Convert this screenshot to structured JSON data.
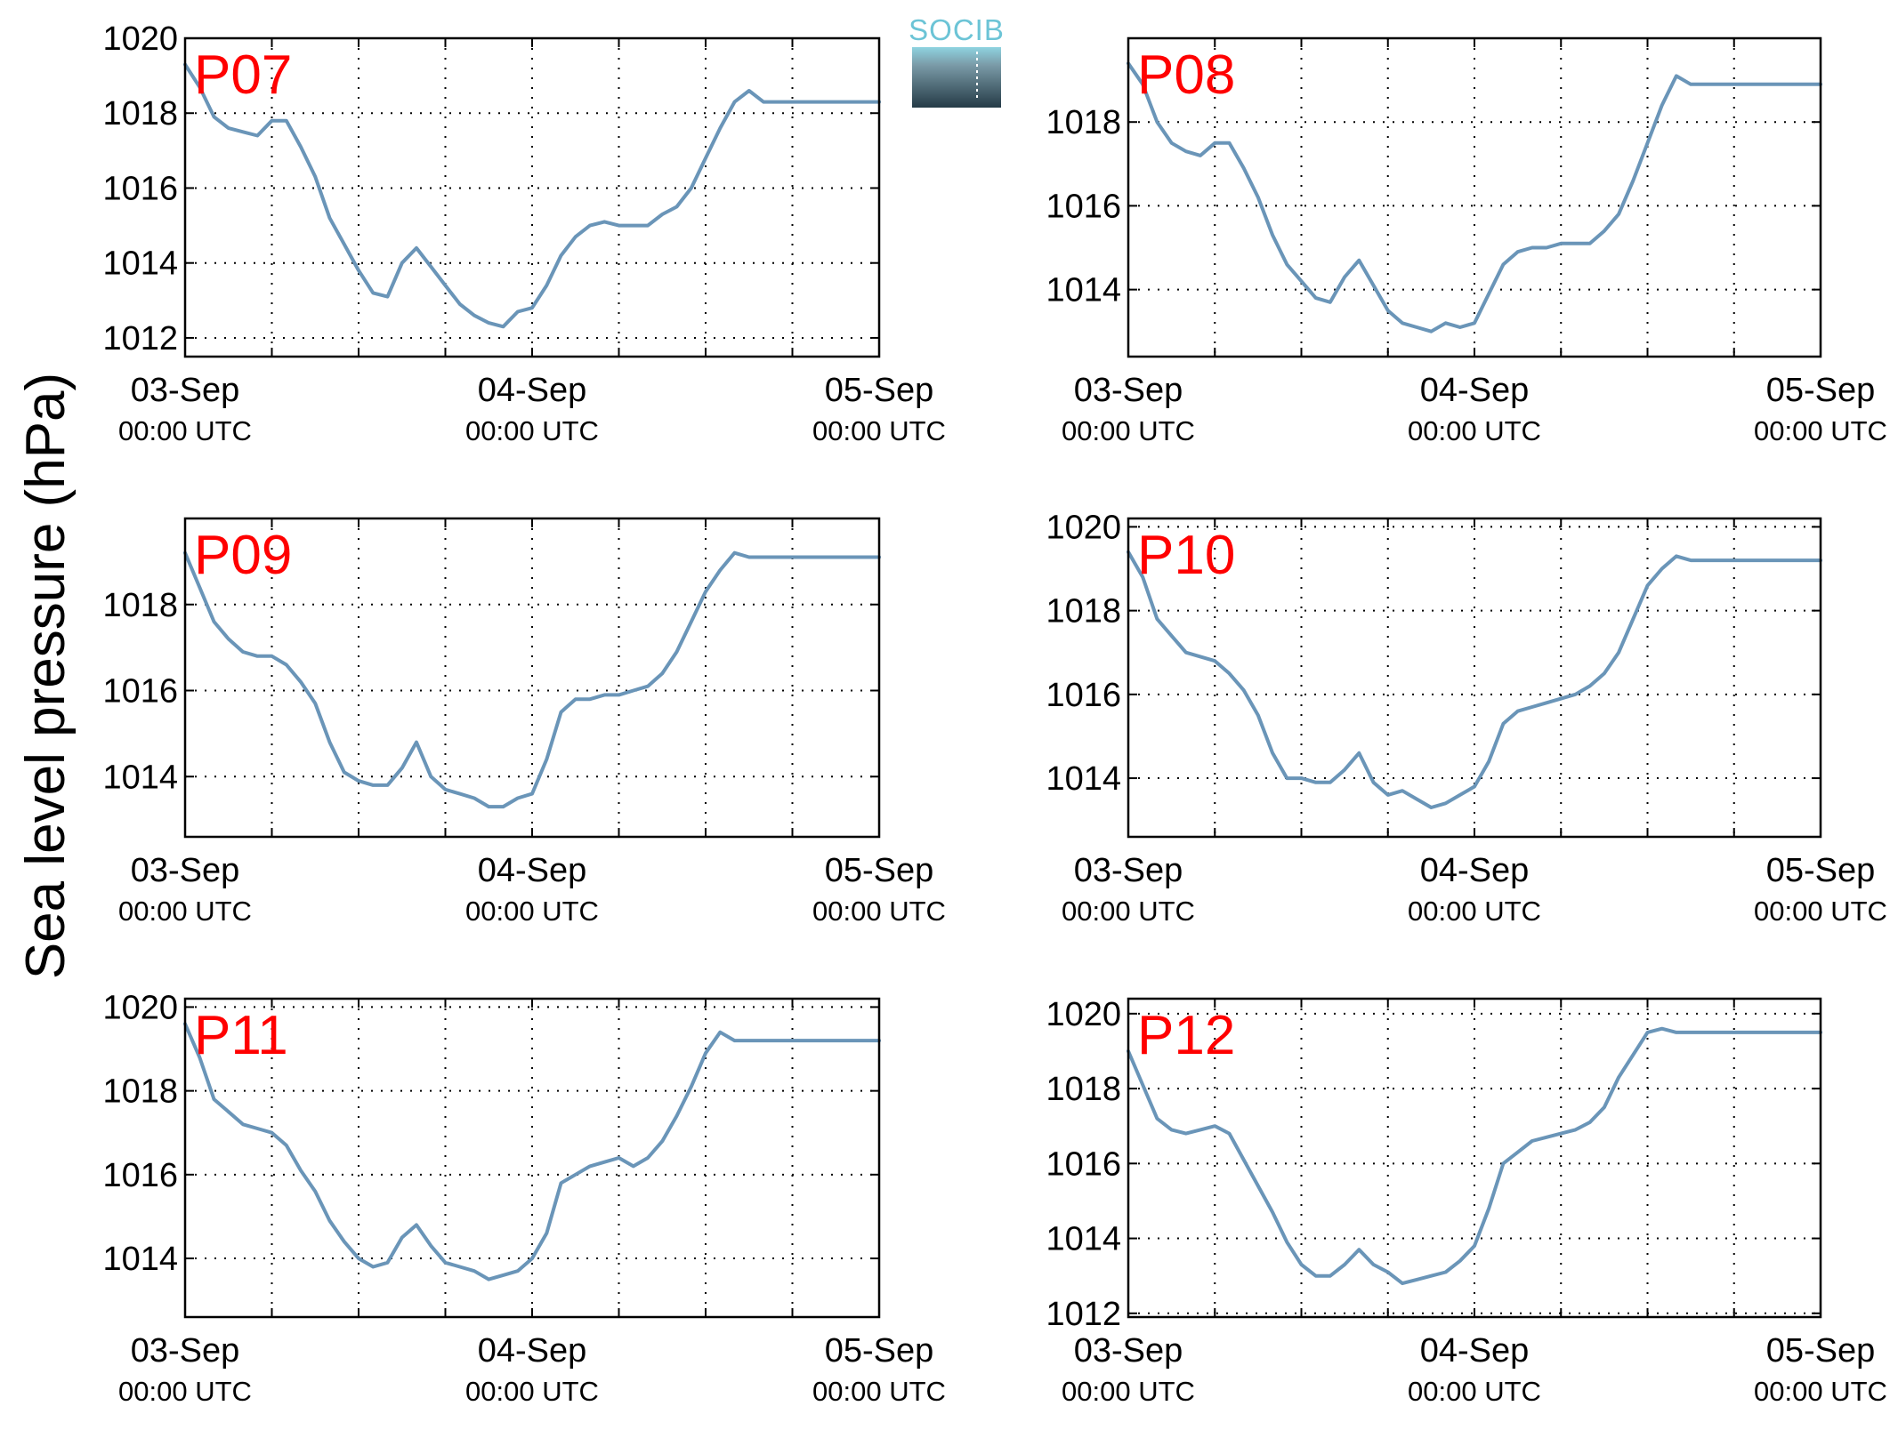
{
  "ylabel": "Sea level pressure (hPa)",
  "logo": {
    "text": "SOCIB"
  },
  "colors": {
    "line": "#6a95b8",
    "panel_label": "#ff0000",
    "grid": "#000000"
  },
  "chart_data": [
    {
      "type": "line",
      "label": "P07",
      "xticks": [
        {
          "date": "03-Sep",
          "time": "00:00 UTC"
        },
        {
          "date": "04-Sep",
          "time": "00:00 UTC"
        },
        {
          "date": "05-Sep",
          "time": "00:00 UTC"
        }
      ],
      "xlim": [
        0,
        48
      ],
      "ylim": [
        1011.5,
        1020
      ],
      "yticks": [
        "1012",
        "1014",
        "1016",
        "1018",
        "1020"
      ],
      "grid": true,
      "x": [
        0,
        1,
        2,
        3,
        4,
        5,
        6,
        7,
        8,
        9,
        10,
        11,
        12,
        13,
        14,
        15,
        16,
        17,
        18,
        19,
        20,
        21,
        22,
        23,
        24,
        25,
        26,
        27,
        28,
        29,
        30,
        31,
        32,
        33,
        34,
        35,
        36,
        37,
        38,
        39,
        40,
        41,
        42,
        43,
        44,
        45,
        46,
        47,
        48
      ],
      "y": [
        1019.3,
        1018.7,
        1017.9,
        1017.6,
        1017.5,
        1017.4,
        1017.8,
        1017.8,
        1017.1,
        1016.3,
        1015.2,
        1014.5,
        1013.8,
        1013.2,
        1013.1,
        1014.0,
        1014.4,
        1013.9,
        1013.4,
        1012.9,
        1012.6,
        1012.4,
        1012.3,
        1012.7,
        1012.8,
        1013.4,
        1014.2,
        1014.7,
        1015.0,
        1015.1,
        1015.0,
        1015.0,
        1015.0,
        1015.3,
        1015.5,
        1016.0,
        1016.8,
        1017.6,
        1018.3,
        1018.6,
        1018.3,
        1018.3,
        1018.3,
        1018.3,
        1018.3,
        1018.3,
        1018.3,
        1018.3,
        1018.3
      ]
    },
    {
      "type": "line",
      "label": "P08",
      "xticks": [
        {
          "date": "03-Sep",
          "time": "00:00 UTC"
        },
        {
          "date": "04-Sep",
          "time": "00:00 UTC"
        },
        {
          "date": "05-Sep",
          "time": "00:00 UTC"
        }
      ],
      "xlim": [
        0,
        48
      ],
      "ylim": [
        1012.4,
        1020
      ],
      "yticks": [
        "1014",
        "1016",
        "1018"
      ],
      "grid": true,
      "x": [
        0,
        1,
        2,
        3,
        4,
        5,
        6,
        7,
        8,
        9,
        10,
        11,
        12,
        13,
        14,
        15,
        16,
        17,
        18,
        19,
        20,
        21,
        22,
        23,
        24,
        25,
        26,
        27,
        28,
        29,
        30,
        31,
        32,
        33,
        34,
        35,
        36,
        37,
        38,
        39,
        40,
        41,
        42,
        43,
        44,
        45,
        46,
        47,
        48
      ],
      "y": [
        1019.4,
        1018.9,
        1018.0,
        1017.5,
        1017.3,
        1017.2,
        1017.5,
        1017.5,
        1016.9,
        1016.2,
        1015.3,
        1014.6,
        1014.2,
        1013.8,
        1013.7,
        1014.3,
        1014.7,
        1014.1,
        1013.5,
        1013.2,
        1013.1,
        1013.0,
        1013.2,
        1013.1,
        1013.2,
        1013.9,
        1014.6,
        1014.9,
        1015.0,
        1015.0,
        1015.1,
        1015.1,
        1015.1,
        1015.4,
        1015.8,
        1016.6,
        1017.5,
        1018.4,
        1019.1,
        1018.9,
        1018.9,
        1018.9,
        1018.9,
        1018.9,
        1018.9,
        1018.9,
        1018.9,
        1018.9,
        1018.9
      ]
    },
    {
      "type": "line",
      "label": "P09",
      "xticks": [
        {
          "date": "03-Sep",
          "time": "00:00 UTC"
        },
        {
          "date": "04-Sep",
          "time": "00:00 UTC"
        },
        {
          "date": "05-Sep",
          "time": "00:00 UTC"
        }
      ],
      "xlim": [
        0,
        48
      ],
      "ylim": [
        1012.6,
        1020
      ],
      "yticks": [
        "1014",
        "1016",
        "1018"
      ],
      "grid": true,
      "x": [
        0,
        1,
        2,
        3,
        4,
        5,
        6,
        7,
        8,
        9,
        10,
        11,
        12,
        13,
        14,
        15,
        16,
        17,
        18,
        19,
        20,
        21,
        22,
        23,
        24,
        25,
        26,
        27,
        28,
        29,
        30,
        31,
        32,
        33,
        34,
        35,
        36,
        37,
        38,
        39,
        40,
        41,
        42,
        43,
        44,
        45,
        46,
        47,
        48
      ],
      "y": [
        1019.2,
        1018.4,
        1017.6,
        1017.2,
        1016.9,
        1016.8,
        1016.8,
        1016.6,
        1016.2,
        1015.7,
        1014.8,
        1014.1,
        1013.9,
        1013.8,
        1013.8,
        1014.2,
        1014.8,
        1014.0,
        1013.7,
        1013.6,
        1013.5,
        1013.3,
        1013.3,
        1013.5,
        1013.6,
        1014.4,
        1015.5,
        1015.8,
        1015.8,
        1015.9,
        1015.9,
        1016.0,
        1016.1,
        1016.4,
        1016.9,
        1017.6,
        1018.3,
        1018.8,
        1019.2,
        1019.1,
        1019.1,
        1019.1,
        1019.1,
        1019.1,
        1019.1,
        1019.1,
        1019.1,
        1019.1,
        1019.1
      ]
    },
    {
      "type": "line",
      "label": "P10",
      "xticks": [
        {
          "date": "03-Sep",
          "time": "00:00 UTC"
        },
        {
          "date": "04-Sep",
          "time": "00:00 UTC"
        },
        {
          "date": "05-Sep",
          "time": "00:00 UTC"
        }
      ],
      "xlim": [
        0,
        48
      ],
      "ylim": [
        1012.6,
        1020.2
      ],
      "yticks": [
        "1014",
        "1016",
        "1018",
        "1020"
      ],
      "grid": true,
      "x": [
        0,
        1,
        2,
        3,
        4,
        5,
        6,
        7,
        8,
        9,
        10,
        11,
        12,
        13,
        14,
        15,
        16,
        17,
        18,
        19,
        20,
        21,
        22,
        23,
        24,
        25,
        26,
        27,
        28,
        29,
        30,
        31,
        32,
        33,
        34,
        35,
        36,
        37,
        38,
        39,
        40,
        41,
        42,
        43,
        44,
        45,
        46,
        47,
        48
      ],
      "y": [
        1019.4,
        1018.8,
        1017.8,
        1017.4,
        1017.0,
        1016.9,
        1016.8,
        1016.5,
        1016.1,
        1015.5,
        1014.6,
        1014.0,
        1014.0,
        1013.9,
        1013.9,
        1014.2,
        1014.6,
        1013.9,
        1013.6,
        1013.7,
        1013.5,
        1013.3,
        1013.4,
        1013.6,
        1013.8,
        1014.4,
        1015.3,
        1015.6,
        1015.7,
        1015.8,
        1015.9,
        1016.0,
        1016.2,
        1016.5,
        1017.0,
        1017.8,
        1018.6,
        1019.0,
        1019.3,
        1019.2,
        1019.2,
        1019.2,
        1019.2,
        1019.2,
        1019.2,
        1019.2,
        1019.2,
        1019.2,
        1019.2
      ]
    },
    {
      "type": "line",
      "label": "P11",
      "xticks": [
        {
          "date": "03-Sep",
          "time": "00:00 UTC"
        },
        {
          "date": "04-Sep",
          "time": "00:00 UTC"
        },
        {
          "date": "05-Sep",
          "time": "00:00 UTC"
        }
      ],
      "xlim": [
        0,
        48
      ],
      "ylim": [
        1012.6,
        1020.2
      ],
      "yticks": [
        "1014",
        "1016",
        "1018",
        "1020"
      ],
      "grid": true,
      "x": [
        0,
        1,
        2,
        3,
        4,
        5,
        6,
        7,
        8,
        9,
        10,
        11,
        12,
        13,
        14,
        15,
        16,
        17,
        18,
        19,
        20,
        21,
        22,
        23,
        24,
        25,
        26,
        27,
        28,
        29,
        30,
        31,
        32,
        33,
        34,
        35,
        36,
        37,
        38,
        39,
        40,
        41,
        42,
        43,
        44,
        45,
        46,
        47,
        48
      ],
      "y": [
        1019.6,
        1018.8,
        1017.8,
        1017.5,
        1017.2,
        1017.1,
        1017.0,
        1016.7,
        1016.1,
        1015.6,
        1014.9,
        1014.4,
        1014.0,
        1013.8,
        1013.9,
        1014.5,
        1014.8,
        1014.3,
        1013.9,
        1013.8,
        1013.7,
        1013.5,
        1013.6,
        1013.7,
        1014.0,
        1014.6,
        1015.8,
        1016.0,
        1016.2,
        1016.3,
        1016.4,
        1016.2,
        1016.4,
        1016.8,
        1017.4,
        1018.1,
        1018.9,
        1019.4,
        1019.2,
        1019.2,
        1019.2,
        1019.2,
        1019.2,
        1019.2,
        1019.2,
        1019.2,
        1019.2,
        1019.2,
        1019.2
      ]
    },
    {
      "type": "line",
      "label": "P12",
      "xticks": [
        {
          "date": "03-Sep",
          "time": "00:00 UTC"
        },
        {
          "date": "04-Sep",
          "time": "00:00 UTC"
        },
        {
          "date": "05-Sep",
          "time": "00:00 UTC"
        }
      ],
      "xlim": [
        0,
        48
      ],
      "ylim": [
        1011.9,
        1020.4
      ],
      "yticks": [
        "1012",
        "1014",
        "1016",
        "1018",
        "1020"
      ],
      "grid": true,
      "x": [
        0,
        1,
        2,
        3,
        4,
        5,
        6,
        7,
        8,
        9,
        10,
        11,
        12,
        13,
        14,
        15,
        16,
        17,
        18,
        19,
        20,
        21,
        22,
        23,
        24,
        25,
        26,
        27,
        28,
        29,
        30,
        31,
        32,
        33,
        34,
        35,
        36,
        37,
        38,
        39,
        40,
        41,
        42,
        43,
        44,
        45,
        46,
        47,
        48
      ],
      "y": [
        1019.0,
        1018.1,
        1017.2,
        1016.9,
        1016.8,
        1016.9,
        1017.0,
        1016.8,
        1016.1,
        1015.4,
        1014.7,
        1013.9,
        1013.3,
        1013.0,
        1013.0,
        1013.3,
        1013.7,
        1013.3,
        1013.1,
        1012.8,
        1012.9,
        1013.0,
        1013.1,
        1013.4,
        1013.8,
        1014.8,
        1016.0,
        1016.3,
        1016.6,
        1016.7,
        1016.8,
        1016.9,
        1017.1,
        1017.5,
        1018.3,
        1018.9,
        1019.5,
        1019.6,
        1019.5,
        1019.5,
        1019.5,
        1019.5,
        1019.5,
        1019.5,
        1019.5,
        1019.5,
        1019.5,
        1019.5,
        1019.5
      ]
    }
  ]
}
